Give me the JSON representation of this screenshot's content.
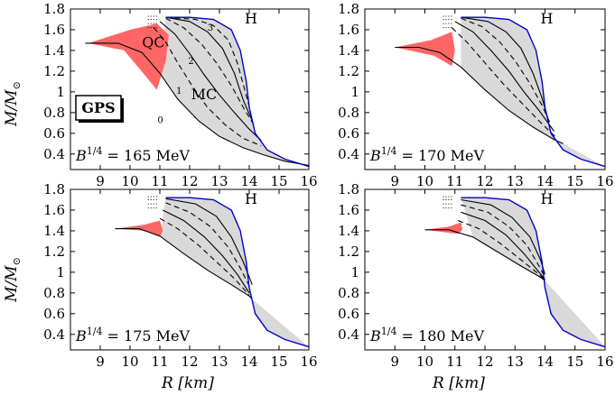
{
  "chart_data": [
    {
      "type": "line",
      "panel_label": "B^{1/4} = 165 MeV",
      "panel_prefix": "B",
      "panel_exp": "1/4",
      "panel_value": " = 165 MeV",
      "xlim": [
        8,
        16
      ],
      "ylim": [
        0.25,
        1.8
      ],
      "xticks": [
        9,
        10,
        11,
        12,
        13,
        14,
        15,
        16
      ],
      "yticks": [
        0.4,
        0.6,
        0.8,
        1,
        1.2,
        1.4,
        1.6,
        1.8
      ],
      "region_labels": {
        "qc": "QC",
        "mc": "MC",
        "h": "H"
      },
      "curve_numbers": [
        "0",
        "1",
        "2",
        "3"
      ],
      "badge": "GPS",
      "series": [
        {
          "style": "blue",
          "x": [
            11.2,
            12.0,
            12.8,
            13.4,
            13.7,
            13.9,
            14.0,
            14.2,
            14.6,
            15.2,
            16.0
          ],
          "y": [
            1.72,
            1.72,
            1.7,
            1.6,
            1.4,
            1.1,
            0.85,
            0.6,
            0.44,
            0.35,
            0.28
          ]
        },
        {
          "style": "solid",
          "x": [
            8.5,
            9.6,
            10.4,
            11.0,
            11.6,
            12.3,
            13.0,
            13.8,
            14.5,
            15.2,
            16.0
          ],
          "y": [
            1.47,
            1.47,
            1.38,
            1.18,
            0.93,
            0.72,
            0.57,
            0.46,
            0.39,
            0.33,
            0.29
          ]
        },
        {
          "style": "dashed",
          "x": [
            10.8,
            11.2,
            11.6,
            12.1,
            12.6,
            13.2,
            13.8,
            14.4
          ],
          "y": [
            1.62,
            1.48,
            1.28,
            1.05,
            0.85,
            0.68,
            0.55,
            0.48
          ]
        },
        {
          "style": "solid",
          "x": [
            11.0,
            11.5,
            12.0,
            12.5,
            13.0,
            13.5,
            14.0,
            14.4
          ],
          "y": [
            1.68,
            1.56,
            1.37,
            1.16,
            0.97,
            0.8,
            0.64,
            0.53
          ]
        },
        {
          "style": "dashed",
          "x": [
            11.2,
            11.8,
            12.4,
            12.9,
            13.4,
            13.8,
            14.2
          ],
          "y": [
            1.71,
            1.62,
            1.46,
            1.28,
            1.06,
            0.85,
            0.66
          ]
        },
        {
          "style": "solid",
          "x": [
            11.2,
            12.0,
            12.6,
            13.1,
            13.5,
            13.8,
            14.1
          ],
          "y": [
            1.72,
            1.68,
            1.58,
            1.42,
            1.18,
            0.92,
            0.72
          ]
        },
        {
          "style": "dashed",
          "x": [
            11.2,
            12.2,
            12.8,
            13.3,
            13.6,
            13.85,
            14.05
          ],
          "y": [
            1.72,
            1.7,
            1.64,
            1.5,
            1.28,
            1.02,
            0.8
          ]
        }
      ]
    },
    {
      "type": "line",
      "panel_label": "B^{1/4} = 170 MeV",
      "panel_prefix": "B",
      "panel_exp": "1/4",
      "panel_value": " = 170 MeV",
      "xlim": [
        8,
        16
      ],
      "ylim": [
        0.25,
        1.8
      ],
      "xticks": [
        9,
        10,
        11,
        12,
        13,
        14,
        15,
        16
      ],
      "yticks": [
        0.4,
        0.6,
        0.8,
        1,
        1.2,
        1.4,
        1.6,
        1.8
      ],
      "region_labels": {
        "h": "H"
      },
      "series": [
        {
          "style": "blue",
          "x": [
            11.2,
            12.0,
            12.8,
            13.4,
            13.7,
            13.9,
            14.0,
            14.2,
            14.6,
            15.2,
            16.0
          ],
          "y": [
            1.72,
            1.72,
            1.7,
            1.6,
            1.4,
            1.1,
            0.85,
            0.6,
            0.44,
            0.35,
            0.28
          ]
        },
        {
          "style": "solid",
          "x": [
            9.0,
            9.8,
            10.5,
            11.2,
            12.0,
            12.8,
            13.6,
            14.3,
            14.6
          ],
          "y": [
            1.43,
            1.43,
            1.38,
            1.24,
            1.02,
            0.82,
            0.66,
            0.54,
            0.5
          ]
        },
        {
          "style": "dashed",
          "x": [
            10.9,
            11.4,
            12.0,
            12.6,
            13.2,
            13.8,
            14.4
          ],
          "y": [
            1.62,
            1.48,
            1.28,
            1.08,
            0.9,
            0.72,
            0.55
          ]
        },
        {
          "style": "solid",
          "x": [
            11.0,
            11.6,
            12.2,
            12.8,
            13.3,
            13.8,
            14.3
          ],
          "y": [
            1.68,
            1.58,
            1.4,
            1.2,
            1.0,
            0.82,
            0.62
          ]
        },
        {
          "style": "dashed",
          "x": [
            11.2,
            11.9,
            12.5,
            13.0,
            13.5,
            13.9,
            14.2
          ],
          "y": [
            1.71,
            1.63,
            1.48,
            1.3,
            1.08,
            0.87,
            0.68
          ]
        },
        {
          "style": "solid",
          "x": [
            11.2,
            12.1,
            12.7,
            13.2,
            13.6,
            13.9,
            14.1
          ],
          "y": [
            1.72,
            1.68,
            1.58,
            1.42,
            1.18,
            0.94,
            0.74
          ]
        }
      ]
    },
    {
      "type": "line",
      "panel_label": "B^{1/4} = 175 MeV",
      "panel_prefix": "B",
      "panel_exp": "1/4",
      "panel_value": " = 175 MeV",
      "xlim": [
        8,
        16
      ],
      "ylim": [
        0.25,
        1.8
      ],
      "xticks": [
        9,
        10,
        11,
        12,
        13,
        14,
        15,
        16
      ],
      "yticks": [
        0.4,
        0.6,
        0.8,
        1,
        1.2,
        1.4,
        1.6,
        1.8
      ],
      "region_labels": {
        "h": "H"
      },
      "series": [
        {
          "style": "blue",
          "x": [
            11.2,
            12.0,
            12.8,
            13.4,
            13.7,
            13.9,
            14.0,
            14.2,
            14.6,
            15.2,
            16.0
          ],
          "y": [
            1.72,
            1.72,
            1.7,
            1.6,
            1.4,
            1.1,
            0.85,
            0.6,
            0.44,
            0.35,
            0.28
          ]
        },
        {
          "style": "solid",
          "x": [
            9.5,
            10.3,
            11.0,
            11.8,
            12.6,
            13.4,
            14.0,
            14.1
          ],
          "y": [
            1.42,
            1.42,
            1.35,
            1.18,
            1.02,
            0.88,
            0.77,
            0.74
          ]
        },
        {
          "style": "dashed",
          "x": [
            11.0,
            11.6,
            12.3,
            12.9,
            13.5,
            14.0
          ],
          "y": [
            1.52,
            1.42,
            1.26,
            1.1,
            0.94,
            0.78
          ]
        },
        {
          "style": "solid",
          "x": [
            11.1,
            11.8,
            12.5,
            13.1,
            13.6,
            14.0
          ],
          "y": [
            1.6,
            1.5,
            1.34,
            1.16,
            0.98,
            0.8
          ]
        },
        {
          "style": "dashed",
          "x": [
            11.2,
            12.0,
            12.7,
            13.3,
            13.7,
            14.05
          ],
          "y": [
            1.67,
            1.58,
            1.44,
            1.24,
            1.04,
            0.84
          ]
        },
        {
          "style": "solid",
          "x": [
            11.2,
            12.2,
            12.9,
            13.4,
            13.8,
            14.1
          ],
          "y": [
            1.71,
            1.66,
            1.54,
            1.34,
            1.1,
            0.88
          ]
        }
      ]
    },
    {
      "type": "line",
      "panel_label": "B^{1/4} = 180 MeV",
      "panel_prefix": "B",
      "panel_exp": "1/4",
      "panel_value": " = 180 MeV",
      "xlim": [
        8,
        16
      ],
      "ylim": [
        0.25,
        1.8
      ],
      "xticks": [
        9,
        10,
        11,
        12,
        13,
        14,
        15,
        16
      ],
      "yticks": [
        0.4,
        0.6,
        0.8,
        1,
        1.2,
        1.4,
        1.6,
        1.8
      ],
      "region_labels": {
        "h": "H"
      },
      "series": [
        {
          "style": "blue",
          "x": [
            11.2,
            12.0,
            12.8,
            13.4,
            13.7,
            13.9,
            14.0,
            14.2,
            14.6,
            15.2,
            16.0
          ],
          "y": [
            1.72,
            1.72,
            1.7,
            1.6,
            1.4,
            1.1,
            0.85,
            0.6,
            0.44,
            0.35,
            0.28
          ]
        },
        {
          "style": "solid",
          "x": [
            10.0,
            10.8,
            11.6,
            12.4,
            13.2,
            13.8,
            14.0
          ],
          "y": [
            1.41,
            1.41,
            1.34,
            1.2,
            1.06,
            0.96,
            0.92
          ]
        },
        {
          "style": "dashed",
          "x": [
            11.1,
            11.8,
            12.5,
            13.2,
            13.8,
            14.0
          ],
          "y": [
            1.5,
            1.42,
            1.28,
            1.12,
            0.98,
            0.92
          ]
        },
        {
          "style": "solid",
          "x": [
            11.2,
            12.0,
            12.7,
            13.3,
            13.8,
            14.0
          ],
          "y": [
            1.58,
            1.5,
            1.36,
            1.18,
            1.0,
            0.93
          ]
        },
        {
          "style": "dashed",
          "x": [
            11.2,
            12.1,
            12.8,
            13.4,
            13.8,
            14.0
          ],
          "y": [
            1.65,
            1.58,
            1.44,
            1.26,
            1.06,
            0.95
          ]
        },
        {
          "style": "solid",
          "x": [
            11.2,
            12.2,
            12.9,
            13.5,
            13.85,
            14.0
          ],
          "y": [
            1.7,
            1.65,
            1.53,
            1.34,
            1.12,
            0.98
          ]
        }
      ]
    }
  ],
  "axes": {
    "ylabel": "M/M",
    "ylabel_sub": "⊙",
    "xlabel": "R [km]"
  }
}
